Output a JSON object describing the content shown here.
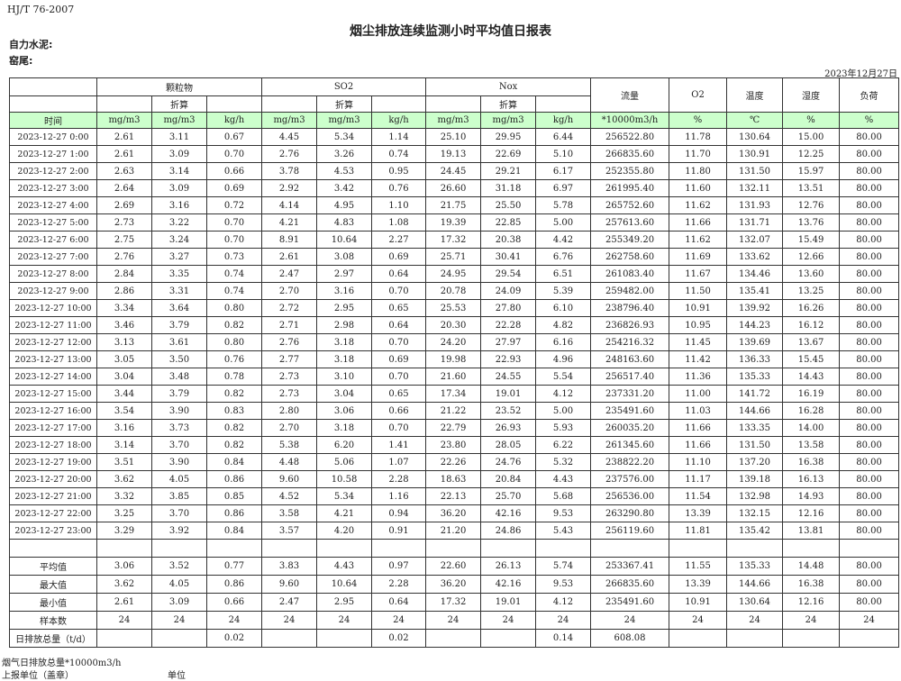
{
  "header": {
    "standard": "HJ/T  76-2007",
    "title": "烟尘排放连续监测小时平均值日报表",
    "company": "自力水泥:",
    "kiln": "窑尾:",
    "date": "2023年12月27日"
  },
  "table": {
    "groups": {
      "pm": "颗粒物",
      "so2": "SO2",
      "nox": "Nox",
      "flow": "流量",
      "o2": "O2",
      "temp": "温度",
      "humidity": "湿度",
      "load": "负荷"
    },
    "converted": "折算",
    "units": [
      "时间",
      "mg/m3",
      "mg/m3",
      "kg/h",
      "mg/m3",
      "mg/m3",
      "kg/h",
      "mg/m3",
      "mg/m3",
      "kg/h",
      "*10000m3/h",
      "%",
      "℃",
      "%",
      "%"
    ],
    "rows": [
      [
        "2023-12-27 0:00",
        "2.61",
        "3.11",
        "0.67",
        "4.45",
        "5.34",
        "1.14",
        "25.10",
        "29.95",
        "6.44",
        "256522.80",
        "11.78",
        "130.64",
        "15.00",
        "80.00"
      ],
      [
        "2023-12-27 1:00",
        "2.61",
        "3.09",
        "0.70",
        "2.76",
        "3.26",
        "0.74",
        "19.13",
        "22.69",
        "5.10",
        "266835.60",
        "11.70",
        "130.91",
        "12.25",
        "80.00"
      ],
      [
        "2023-12-27 2:00",
        "2.63",
        "3.14",
        "0.66",
        "3.78",
        "4.53",
        "0.95",
        "24.45",
        "29.21",
        "6.17",
        "252355.80",
        "11.80",
        "131.50",
        "15.97",
        "80.00"
      ],
      [
        "2023-12-27 3:00",
        "2.64",
        "3.09",
        "0.69",
        "2.92",
        "3.42",
        "0.76",
        "26.60",
        "31.18",
        "6.97",
        "261995.40",
        "11.60",
        "132.11",
        "13.51",
        "80.00"
      ],
      [
        "2023-12-27 4:00",
        "2.69",
        "3.16",
        "0.72",
        "4.14",
        "4.95",
        "1.10",
        "21.75",
        "25.50",
        "5.78",
        "265752.60",
        "11.62",
        "131.93",
        "12.76",
        "80.00"
      ],
      [
        "2023-12-27 5:00",
        "2.73",
        "3.22",
        "0.70",
        "4.21",
        "4.83",
        "1.08",
        "19.39",
        "22.85",
        "5.00",
        "257613.60",
        "11.66",
        "131.71",
        "13.76",
        "80.00"
      ],
      [
        "2023-12-27 6:00",
        "2.75",
        "3.24",
        "0.70",
        "8.91",
        "10.64",
        "2.27",
        "17.32",
        "20.38",
        "4.42",
        "255349.20",
        "11.62",
        "132.07",
        "15.49",
        "80.00"
      ],
      [
        "2023-12-27 7:00",
        "2.76",
        "3.27",
        "0.73",
        "2.61",
        "3.08",
        "0.69",
        "25.71",
        "30.41",
        "6.76",
        "262758.60",
        "11.69",
        "133.62",
        "12.66",
        "80.00"
      ],
      [
        "2023-12-27 8:00",
        "2.84",
        "3.35",
        "0.74",
        "2.47",
        "2.97",
        "0.64",
        "24.95",
        "29.54",
        "6.51",
        "261083.40",
        "11.67",
        "134.46",
        "13.60",
        "80.00"
      ],
      [
        "2023-12-27 9:00",
        "2.86",
        "3.31",
        "0.74",
        "2.70",
        "3.16",
        "0.70",
        "20.78",
        "24.09",
        "5.39",
        "259482.00",
        "11.50",
        "135.41",
        "13.25",
        "80.00"
      ],
      [
        "2023-12-27 10:00",
        "3.34",
        "3.64",
        "0.80",
        "2.72",
        "2.95",
        "0.65",
        "25.53",
        "27.80",
        "6.10",
        "238796.40",
        "10.91",
        "139.92",
        "16.26",
        "80.00"
      ],
      [
        "2023-12-27 11:00",
        "3.46",
        "3.79",
        "0.82",
        "2.71",
        "2.98",
        "0.64",
        "20.30",
        "22.28",
        "4.82",
        "236826.93",
        "10.95",
        "144.23",
        "16.12",
        "80.00"
      ],
      [
        "2023-12-27 12:00",
        "3.13",
        "3.61",
        "0.80",
        "2.76",
        "3.18",
        "0.70",
        "24.20",
        "27.97",
        "6.16",
        "254216.32",
        "11.45",
        "139.69",
        "13.67",
        "80.00"
      ],
      [
        "2023-12-27 13:00",
        "3.05",
        "3.50",
        "0.76",
        "2.77",
        "3.18",
        "0.69",
        "19.98",
        "22.93",
        "4.96",
        "248163.60",
        "11.42",
        "136.33",
        "15.45",
        "80.00"
      ],
      [
        "2023-12-27 14:00",
        "3.04",
        "3.48",
        "0.78",
        "2.73",
        "3.10",
        "0.70",
        "21.60",
        "24.55",
        "5.54",
        "256517.40",
        "11.36",
        "135.33",
        "14.43",
        "80.00"
      ],
      [
        "2023-12-27 15:00",
        "3.44",
        "3.79",
        "0.82",
        "2.73",
        "3.04",
        "0.65",
        "17.34",
        "19.01",
        "4.12",
        "237331.20",
        "11.00",
        "141.72",
        "16.19",
        "80.00"
      ],
      [
        "2023-12-27 16:00",
        "3.54",
        "3.90",
        "0.83",
        "2.80",
        "3.06",
        "0.66",
        "21.22",
        "23.52",
        "5.00",
        "235491.60",
        "11.03",
        "144.66",
        "16.28",
        "80.00"
      ],
      [
        "2023-12-27 17:00",
        "3.16",
        "3.73",
        "0.82",
        "2.70",
        "3.18",
        "0.70",
        "22.79",
        "26.93",
        "5.93",
        "260035.20",
        "11.66",
        "133.35",
        "14.00",
        "80.00"
      ],
      [
        "2023-12-27 18:00",
        "3.14",
        "3.70",
        "0.82",
        "5.38",
        "6.20",
        "1.41",
        "23.80",
        "28.05",
        "6.22",
        "261345.60",
        "11.66",
        "131.50",
        "13.58",
        "80.00"
      ],
      [
        "2023-12-27 19:00",
        "3.51",
        "3.90",
        "0.84",
        "4.48",
        "5.06",
        "1.07",
        "22.26",
        "24.76",
        "5.32",
        "238822.20",
        "11.10",
        "137.20",
        "16.38",
        "80.00"
      ],
      [
        "2023-12-27 20:00",
        "3.62",
        "4.05",
        "0.86",
        "9.60",
        "10.58",
        "2.28",
        "18.63",
        "20.84",
        "4.43",
        "237576.00",
        "11.17",
        "139.18",
        "16.13",
        "80.00"
      ],
      [
        "2023-12-27 21:00",
        "3.32",
        "3.85",
        "0.85",
        "4.52",
        "5.34",
        "1.16",
        "22.13",
        "25.70",
        "5.68",
        "256536.00",
        "11.54",
        "132.98",
        "14.93",
        "80.00"
      ],
      [
        "2023-12-27 22:00",
        "3.25",
        "3.70",
        "0.86",
        "3.58",
        "4.21",
        "0.94",
        "36.20",
        "42.16",
        "9.53",
        "263290.80",
        "13.39",
        "132.15",
        "12.16",
        "80.00"
      ],
      [
        "2023-12-27 23:00",
        "3.29",
        "3.92",
        "0.84",
        "3.57",
        "4.20",
        "0.91",
        "21.20",
        "24.86",
        "5.43",
        "256119.60",
        "11.81",
        "135.42",
        "13.81",
        "80.00"
      ]
    ],
    "summary": [
      [
        "平均值",
        "3.06",
        "3.52",
        "0.77",
        "3.83",
        "4.43",
        "0.97",
        "22.60",
        "26.13",
        "5.74",
        "253367.41",
        "11.55",
        "135.33",
        "14.48",
        "80.00"
      ],
      [
        "最大值",
        "3.62",
        "4.05",
        "0.86",
        "9.60",
        "10.64",
        "2.28",
        "36.20",
        "42.16",
        "9.53",
        "266835.60",
        "13.39",
        "144.66",
        "16.38",
        "80.00"
      ],
      [
        "最小值",
        "2.61",
        "3.09",
        "0.66",
        "2.47",
        "2.95",
        "0.64",
        "17.32",
        "19.01",
        "4.12",
        "235491.60",
        "10.91",
        "130.64",
        "12.16",
        "80.00"
      ],
      [
        "样本数",
        "24",
        "24",
        "24",
        "24",
        "24",
        "24",
        "24",
        "24",
        "24",
        "24",
        "24",
        "24",
        "24",
        "24"
      ],
      [
        "日排放总量（t/d）",
        "",
        "",
        "0.02",
        "",
        "",
        "0.02",
        "",
        "",
        "0.14",
        "608.08",
        "",
        "",
        "",
        ""
      ]
    ]
  },
  "footer": {
    "flue_total": "烟气日排放总量*10000m3/h",
    "reporter": "上报单位（盖章）",
    "unit": "单位"
  },
  "colors": {
    "unit_row_bg": "#ccffcc"
  }
}
